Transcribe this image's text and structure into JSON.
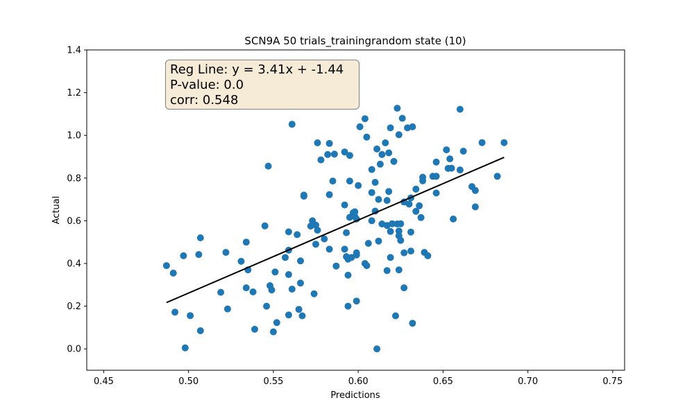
{
  "chart_data": {
    "type": "scatter",
    "title": "SCN9A 50 trials_trainingrandom state (10)",
    "xlabel": "Predictions",
    "ylabel": "Actual",
    "xlim": [
      0.44,
      0.757
    ],
    "ylim": [
      -0.1,
      1.4
    ],
    "xticks": [
      0.45,
      0.5,
      0.55,
      0.6,
      0.65,
      0.7,
      0.75
    ],
    "xtick_labels": [
      "0.45",
      "0.50",
      "0.55",
      "0.60",
      "0.65",
      "0.70",
      "0.75"
    ],
    "yticks": [
      0.0,
      0.2,
      0.4,
      0.6,
      0.8,
      1.0,
      1.2,
      1.4
    ],
    "ytick_labels": [
      "0.0",
      "0.2",
      "0.4",
      "0.6",
      "0.8",
      "1.0",
      "1.2",
      "1.4"
    ],
    "grid": false,
    "point_color": "#1f77b4",
    "line_color": "#000000",
    "annotation": {
      "line1": "Reg Line: y = 3.41x + -1.44",
      "line2": "P-value: 0.0",
      "line3": "corr: 0.548",
      "background": "#f6ebd6"
    },
    "regression_line": {
      "x": [
        0.487,
        0.686
      ],
      "y": [
        0.217,
        0.897
      ]
    },
    "points": [
      [
        0.487,
        0.39
      ],
      [
        0.491,
        0.355
      ],
      [
        0.492,
        0.172
      ],
      [
        0.497,
        0.436
      ],
      [
        0.498,
        0.005
      ],
      [
        0.501,
        0.156
      ],
      [
        0.506,
        0.442
      ],
      [
        0.507,
        0.52
      ],
      [
        0.507,
        0.085
      ],
      [
        0.519,
        0.265
      ],
      [
        0.522,
        0.452
      ],
      [
        0.523,
        0.187
      ],
      [
        0.531,
        0.41
      ],
      [
        0.534,
        0.5
      ],
      [
        0.535,
        0.37
      ],
      [
        0.534,
        0.286
      ],
      [
        0.538,
        0.267
      ],
      [
        0.539,
        0.092
      ],
      [
        0.545,
        0.576
      ],
      [
        0.546,
        0.2
      ],
      [
        0.547,
        0.856
      ],
      [
        0.548,
        0.296
      ],
      [
        0.549,
        0.276
      ],
      [
        0.55,
        0.08
      ],
      [
        0.551,
        0.36
      ],
      [
        0.552,
        0.123
      ],
      [
        0.557,
        0.428
      ],
      [
        0.559,
        0.548
      ],
      [
        0.559,
        0.462
      ],
      [
        0.559,
        0.348
      ],
      [
        0.559,
        0.159
      ],
      [
        0.561,
        1.052
      ],
      [
        0.561,
        0.28
      ],
      [
        0.564,
        0.535
      ],
      [
        0.565,
        0.185
      ],
      [
        0.566,
        0.412
      ],
      [
        0.566,
        0.308
      ],
      [
        0.567,
        0.155
      ],
      [
        0.568,
        0.72
      ],
      [
        0.568,
        0.715
      ],
      [
        0.572,
        0.575
      ],
      [
        0.573,
        0.6
      ],
      [
        0.574,
        0.258
      ],
      [
        0.575,
        0.58
      ],
      [
        0.575,
        0.49
      ],
      [
        0.576,
        0.556
      ],
      [
        0.576,
        0.965
      ],
      [
        0.578,
        0.885
      ],
      [
        0.58,
        0.515
      ],
      [
        0.582,
        0.91
      ],
      [
        0.583,
        0.962
      ],
      [
        0.583,
        0.722
      ],
      [
        0.583,
        0.467
      ],
      [
        0.585,
        0.786
      ],
      [
        0.586,
        0.912
      ],
      [
        0.587,
        0.388
      ],
      [
        0.592,
        0.922
      ],
      [
        0.592,
        0.674
      ],
      [
        0.592,
        0.467
      ],
      [
        0.593,
        0.544
      ],
      [
        0.593,
        0.432
      ],
      [
        0.594,
        0.42
      ],
      [
        0.594,
        0.345
      ],
      [
        0.594,
        0.2
      ],
      [
        0.595,
        0.906
      ],
      [
        0.595,
        0.616
      ],
      [
        0.595,
        0.786
      ],
      [
        0.596,
        0.428
      ],
      [
        0.597,
        0.637
      ],
      [
        0.598,
        0.642
      ],
      [
        0.598,
        0.62
      ],
      [
        0.599,
        0.45
      ],
      [
        0.599,
        0.44
      ],
      [
        0.599,
        0.608
      ],
      [
        0.599,
        0.224
      ],
      [
        0.6,
        0.765
      ],
      [
        0.601,
        1.04
      ],
      [
        0.604,
        1.078
      ],
      [
        0.604,
        0.4
      ],
      [
        0.605,
        0.39
      ],
      [
        0.605,
        0.992
      ],
      [
        0.606,
        0.494
      ],
      [
        0.608,
        0.84
      ],
      [
        0.608,
        0.6
      ],
      [
        0.608,
        0.732
      ],
      [
        0.61,
        0.78
      ],
      [
        0.61,
        0.645
      ],
      [
        0.611,
        0.936
      ],
      [
        0.611,
        0.0
      ],
      [
        0.612,
        0.7
      ],
      [
        0.612,
        0.505
      ],
      [
        0.613,
        0.865
      ],
      [
        0.614,
        0.585
      ],
      [
        0.614,
        0.91
      ],
      [
        0.616,
        0.965
      ],
      [
        0.617,
        0.695
      ],
      [
        0.617,
        0.367
      ],
      [
        0.617,
        0.578
      ],
      [
        0.618,
        0.918
      ],
      [
        0.618,
        0.737
      ],
      [
        0.619,
        0.55
      ],
      [
        0.619,
        0.428
      ],
      [
        0.619,
        1.035
      ],
      [
        0.62,
        0.586
      ],
      [
        0.621,
        0.878
      ],
      [
        0.622,
        0.155
      ],
      [
        0.623,
        1.127
      ],
      [
        0.623,
        0.585
      ],
      [
        0.624,
        1.003
      ],
      [
        0.624,
        0.37
      ],
      [
        0.624,
        0.552
      ],
      [
        0.624,
        0.53
      ],
      [
        0.625,
        0.508
      ],
      [
        0.625,
        0.586
      ],
      [
        0.626,
        1.08
      ],
      [
        0.627,
        0.688
      ],
      [
        0.627,
        0.45
      ],
      [
        0.627,
        0.286
      ],
      [
        0.629,
        1.035
      ],
      [
        0.63,
        0.678
      ],
      [
        0.631,
        0.707
      ],
      [
        0.631,
        0.547
      ],
      [
        0.631,
        0.458
      ],
      [
        0.632,
        1.04
      ],
      [
        0.632,
        0.12
      ],
      [
        0.634,
        0.748
      ],
      [
        0.634,
        0.644
      ],
      [
        0.636,
        0.67
      ],
      [
        0.637,
        0.615
      ],
      [
        0.638,
        0.804
      ],
      [
        0.638,
        0.787
      ],
      [
        0.639,
        0.452
      ],
      [
        0.641,
        0.436
      ],
      [
        0.644,
        0.808
      ],
      [
        0.646,
        0.875
      ],
      [
        0.646,
        0.808
      ],
      [
        0.646,
        0.73
      ],
      [
        0.652,
        0.932
      ],
      [
        0.653,
        0.845
      ],
      [
        0.654,
        0.89
      ],
      [
        0.655,
        0.846
      ],
      [
        0.656,
        0.608
      ],
      [
        0.66,
        0.838
      ],
      [
        0.66,
        1.122
      ],
      [
        0.662,
        0.926
      ],
      [
        0.667,
        0.76
      ],
      [
        0.669,
        0.742
      ],
      [
        0.669,
        0.665
      ],
      [
        0.673,
        0.966
      ],
      [
        0.682,
        0.808
      ],
      [
        0.686,
        0.966
      ]
    ]
  }
}
